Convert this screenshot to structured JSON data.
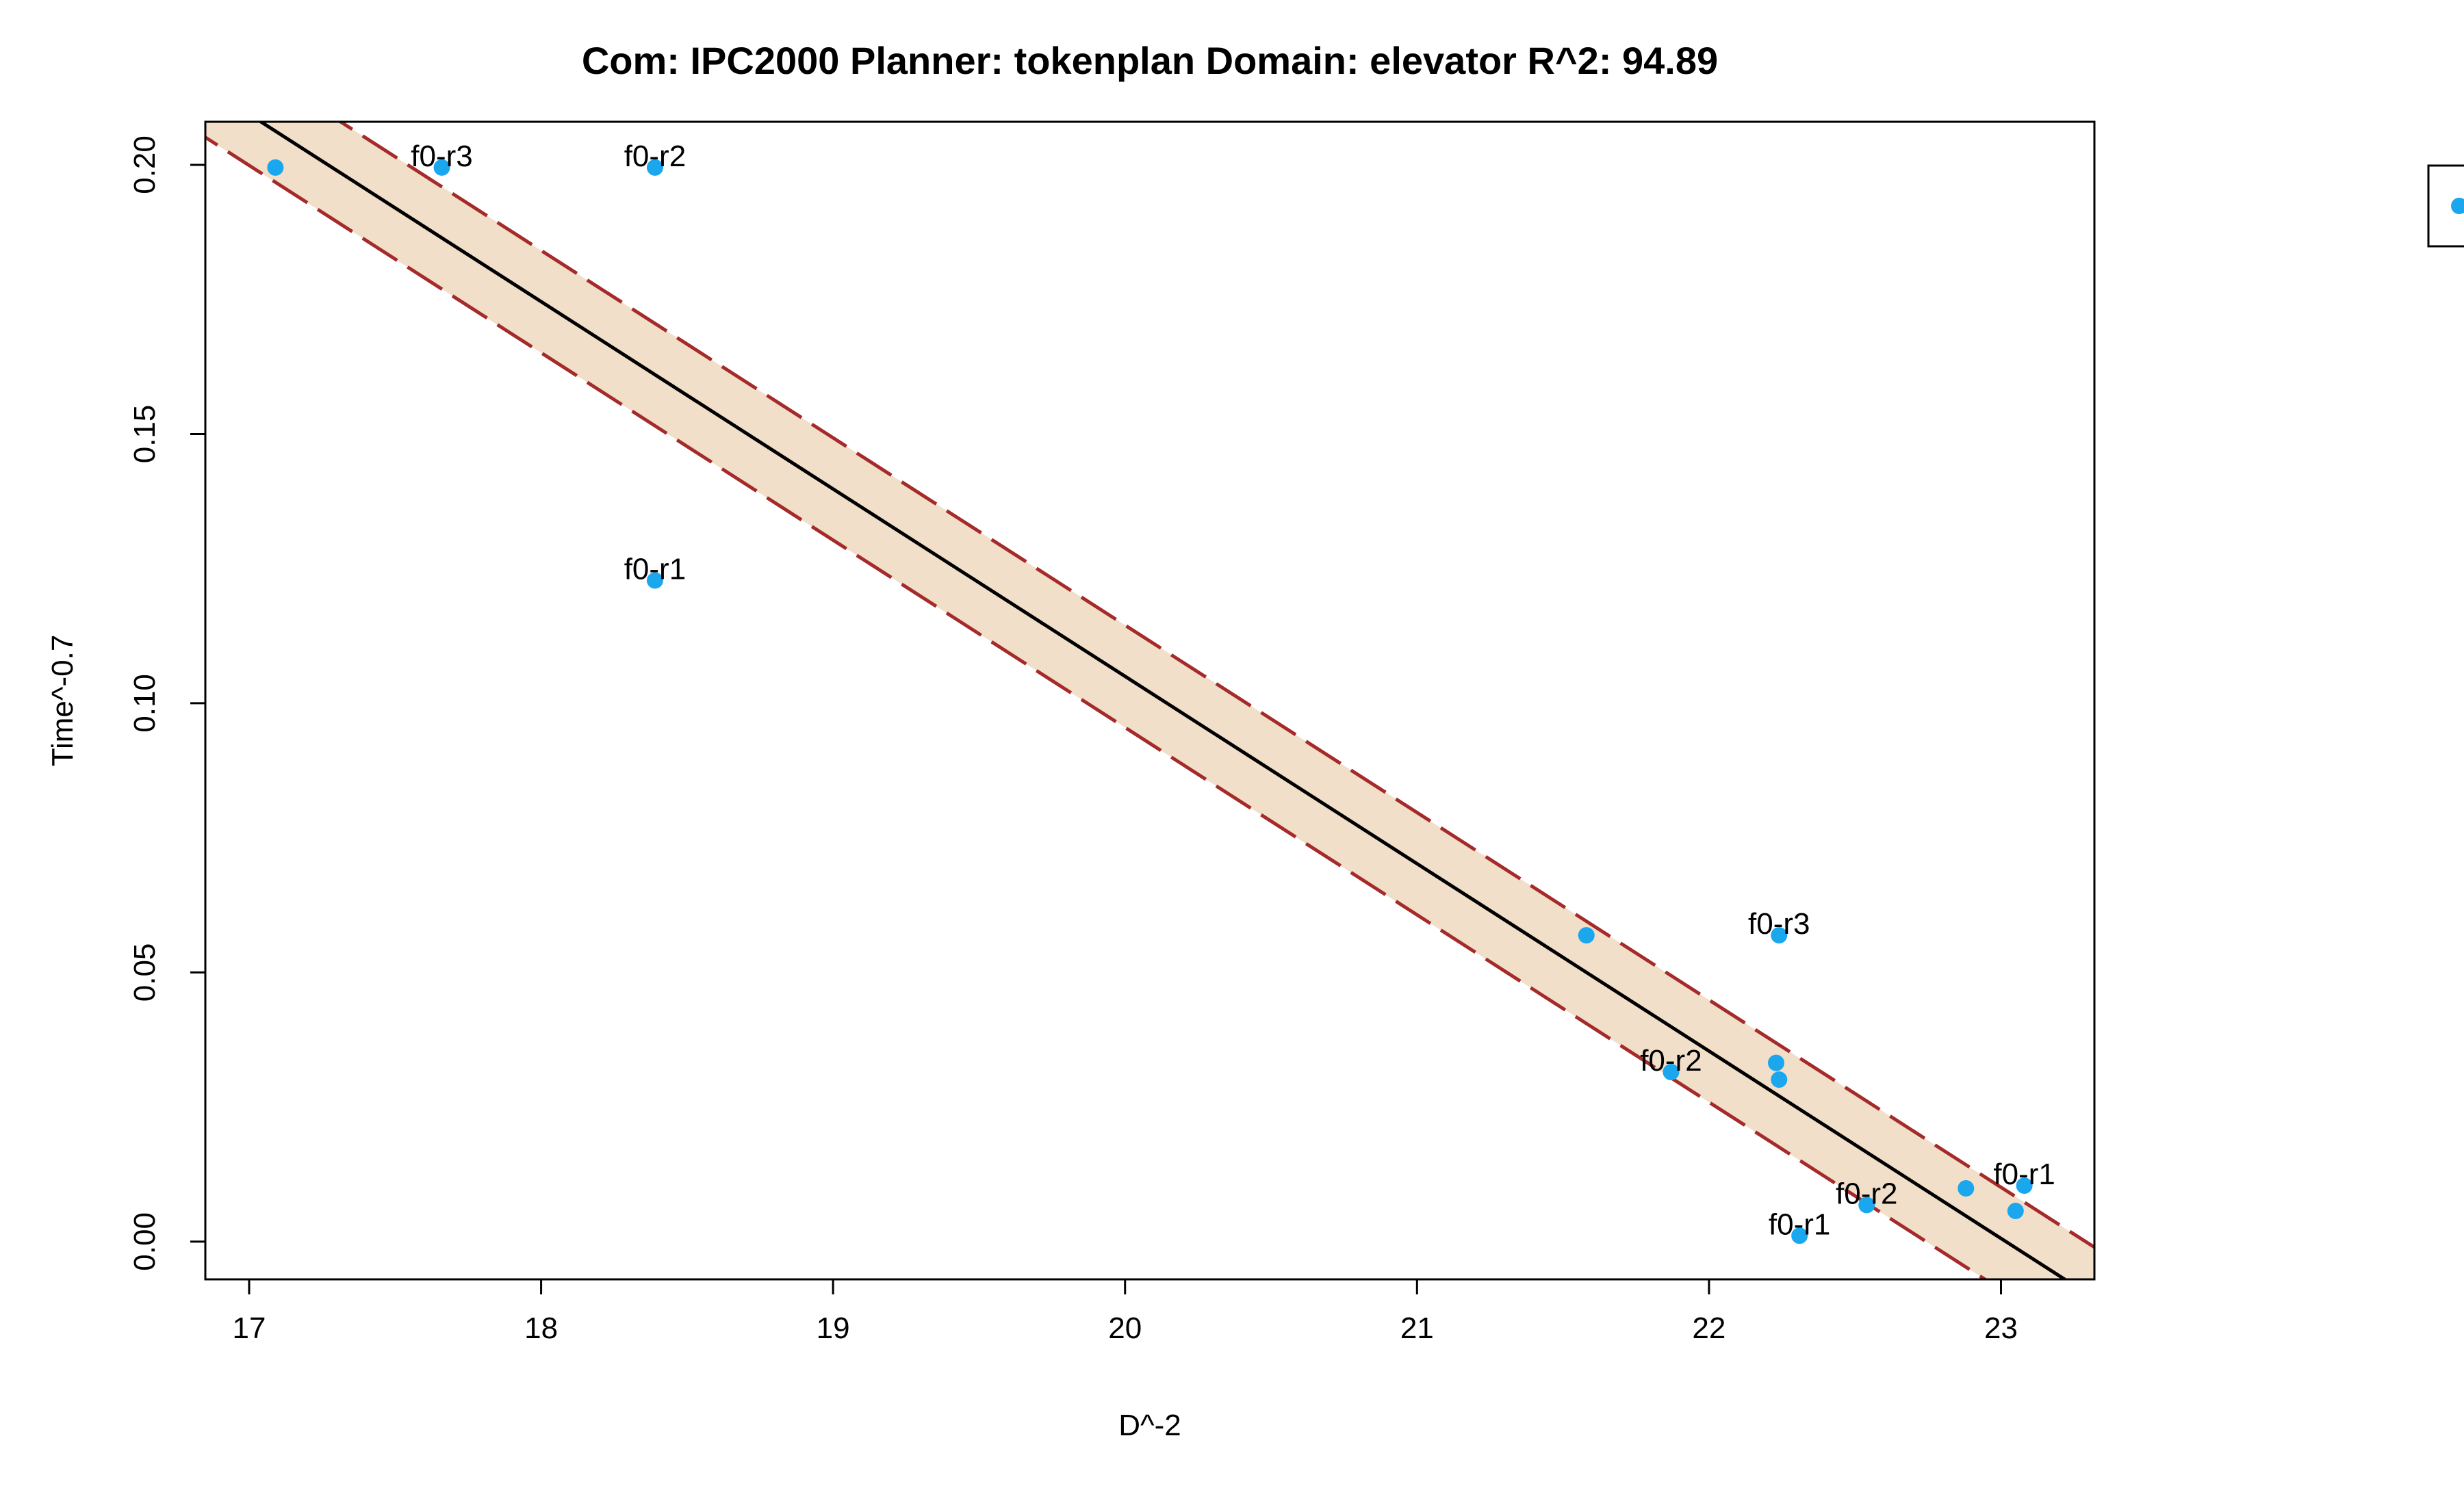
{
  "chart_data": {
    "type": "scatter",
    "title": "Com: IPC2000 Planner: tokenplan Domain: elevator R^2: 94.89",
    "xlabel": "D^-2",
    "ylabel": "Time^-0.7",
    "xlim": [
      16.85,
      23.32
    ],
    "ylim": [
      -0.007,
      0.208
    ],
    "xticks": [
      "17",
      "18",
      "19",
      "20",
      "21",
      "22",
      "23"
    ],
    "yticks": [
      "0.00",
      "0.05",
      "0.10",
      "0.15",
      "0.20"
    ],
    "grid": false,
    "legend": "right",
    "colors": {
      "points": "#1aa7ee",
      "fit": "#000000",
      "band": "#f1dfca",
      "bounds": "#a52a2a"
    },
    "fit": {
      "slope": -0.0348,
      "intercept": 0.801
    },
    "band_halfwidth": 0.0095,
    "points": [
      {
        "x": 17.09,
        "y": 0.1995,
        "label": ""
      },
      {
        "x": 17.66,
        "y": 0.1995,
        "label": "f0-r3"
      },
      {
        "x": 18.39,
        "y": 0.1995,
        "label": "f0-r2"
      },
      {
        "x": 18.39,
        "y": 0.1228,
        "label": "f0-r1"
      },
      {
        "x": 21.58,
        "y": 0.0569,
        "label": ""
      },
      {
        "x": 22.24,
        "y": 0.0569,
        "label": "f0-r3"
      },
      {
        "x": 21.87,
        "y": 0.0315,
        "label": "f0-r2"
      },
      {
        "x": 22.23,
        "y": 0.0332,
        "label": ""
      },
      {
        "x": 22.24,
        "y": 0.0301,
        "label": ""
      },
      {
        "x": 22.54,
        "y": 0.0068,
        "label": "f0-r2"
      },
      {
        "x": 22.31,
        "y": 0.0011,
        "label": "f0-r1"
      },
      {
        "x": 22.88,
        "y": 0.0099,
        "label": ""
      },
      {
        "x": 23.08,
        "y": 0.0104,
        "label": "f0-r1"
      },
      {
        "x": 23.05,
        "y": 0.0057,
        "label": ""
      }
    ]
  }
}
